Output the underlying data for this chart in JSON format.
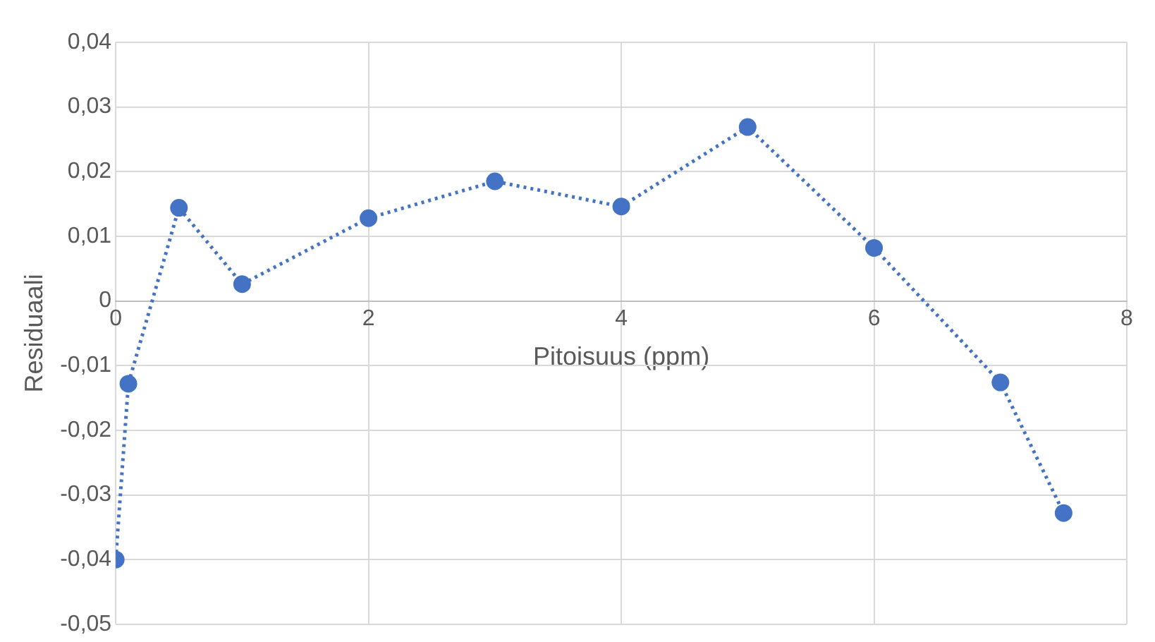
{
  "chart_data": {
    "type": "line",
    "xlabel": "Pitoisuus (ppm)",
    "ylabel": "Residuaali",
    "x": [
      0,
      0.1,
      0.5,
      1,
      2,
      3,
      4,
      5,
      6,
      7,
      7.5
    ],
    "series": [
      {
        "color": "#4472c4",
        "values": [
          -0.04,
          -0.0128,
          0.0144,
          0.0026,
          0.0128,
          0.0185,
          0.0146,
          0.0269,
          0.0082,
          -0.0126,
          -0.0328
        ]
      }
    ],
    "xlim": [
      0,
      8
    ],
    "xticks": [
      0,
      2,
      4,
      6,
      8
    ],
    "ylim": [
      -0.05,
      0.04
    ],
    "yticks": [
      {
        "value": -0.05,
        "label": "-0,05"
      },
      {
        "value": -0.04,
        "label": "-0,04"
      },
      {
        "value": -0.03,
        "label": "-0,03"
      },
      {
        "value": -0.02,
        "label": "-0,02"
      },
      {
        "value": -0.01,
        "label": "-0,01"
      },
      {
        "value": 0,
        "label": "0"
      },
      {
        "value": 0.01,
        "label": "0,01"
      },
      {
        "value": 0.02,
        "label": "0,02"
      },
      {
        "value": 0.03,
        "label": "0,03"
      },
      {
        "value": 0.04,
        "label": "0,04"
      }
    ],
    "grid": true,
    "legend": false,
    "marker": "circle",
    "line_style": "dotted"
  }
}
